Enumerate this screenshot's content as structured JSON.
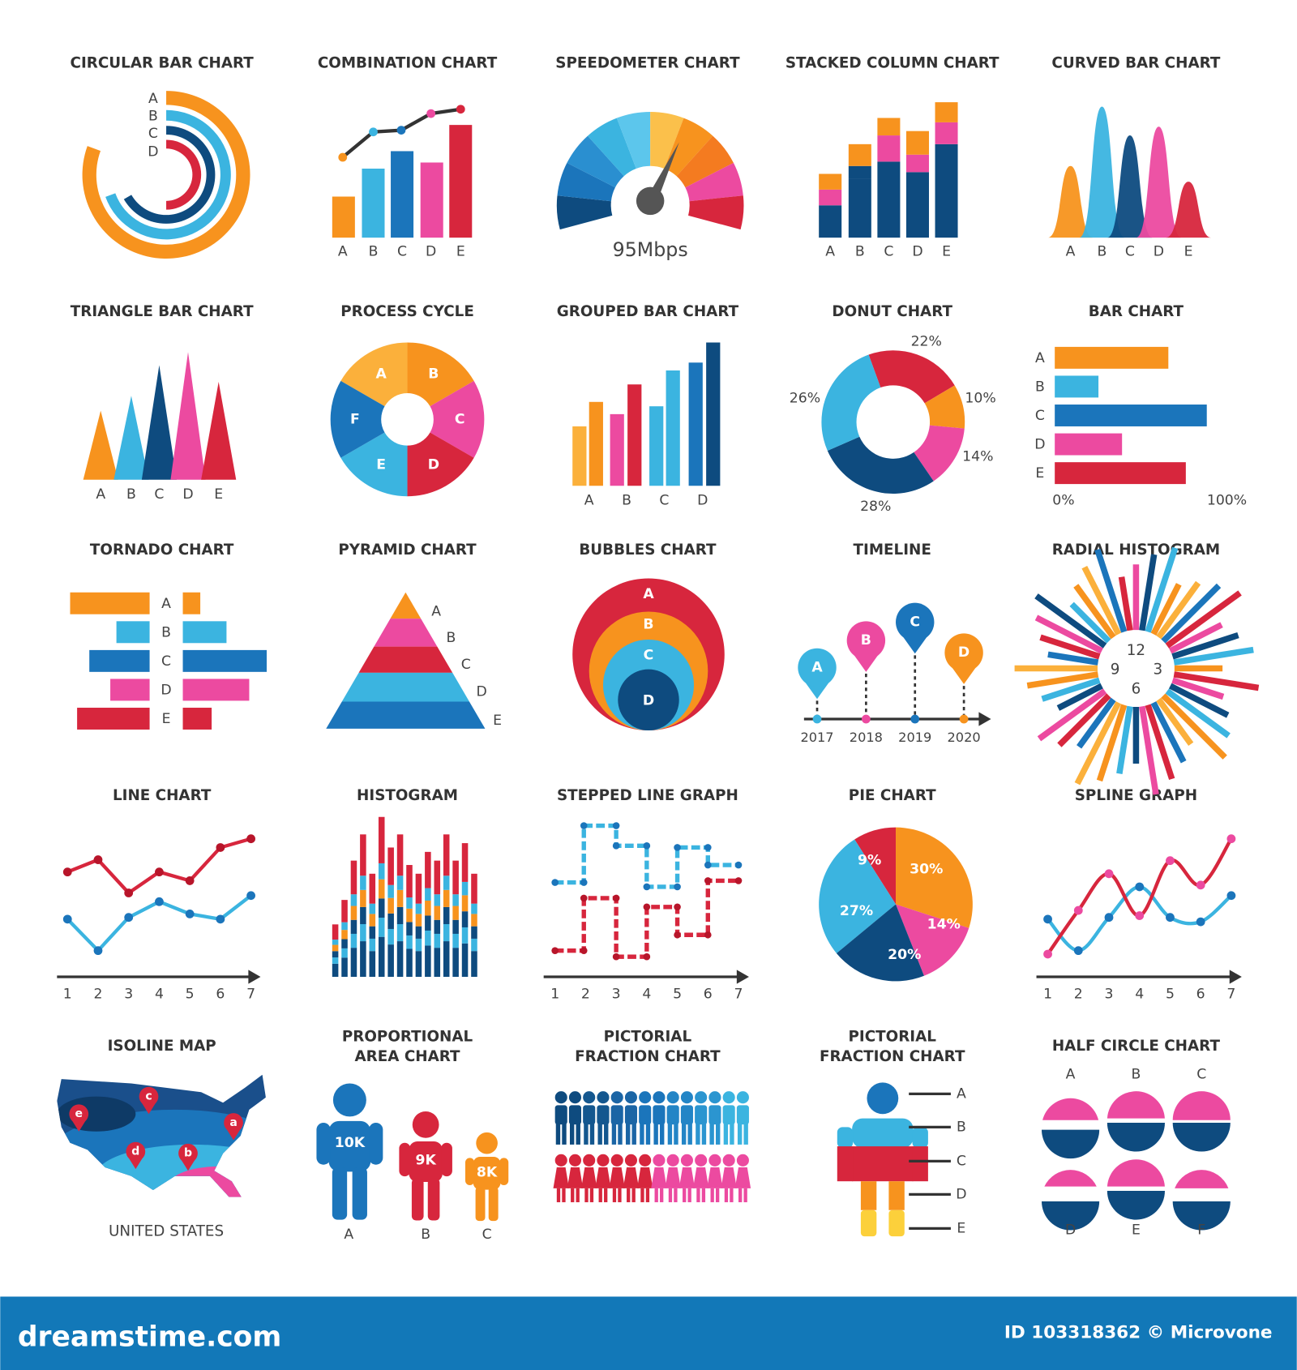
{
  "tiles": [
    {
      "title": "CIRCULAR BAR CHART",
      "labels": [
        "A",
        "B",
        "C",
        "D"
      ]
    },
    {
      "title": "COMBINATION CHART",
      "labels": [
        "A",
        "B",
        "C",
        "D",
        "E"
      ]
    },
    {
      "title": "SPEEDOMETER CHART",
      "labels": [
        "95Mbps"
      ]
    },
    {
      "title": "STACKED COLUMN CHART",
      "labels": [
        "A",
        "B",
        "C",
        "D",
        "E"
      ]
    },
    {
      "title": "CURVED BAR CHART",
      "labels": [
        "A",
        "B",
        "C",
        "D",
        "E"
      ]
    },
    {
      "title": "TRIANGLE BAR CHART",
      "labels": [
        "A",
        "B",
        "C",
        "D",
        "E"
      ]
    },
    {
      "title": "PROCESS CYCLE",
      "labels": [
        "A",
        "B",
        "C",
        "D",
        "E",
        "F"
      ]
    },
    {
      "title": "GROUPED BAR CHART",
      "labels": [
        "A",
        "B",
        "C",
        "D"
      ]
    },
    {
      "title": "DONUT CHART",
      "labels": [
        "22%",
        "10%",
        "14%",
        "28%",
        "26%"
      ]
    },
    {
      "title": "BAR CHART",
      "labels": [
        "A",
        "B",
        "C",
        "D",
        "E",
        "0%",
        "100%"
      ]
    },
    {
      "title": "TORNADO CHART",
      "labels": [
        "A",
        "B",
        "C",
        "D",
        "E"
      ]
    },
    {
      "title": "PYRAMID CHART",
      "labels": [
        "A",
        "B",
        "C",
        "D",
        "E"
      ]
    },
    {
      "title": "BUBBLES CHART",
      "labels": [
        "A",
        "B",
        "C",
        "D"
      ]
    },
    {
      "title": "TIMELINE",
      "labels": [
        "A",
        "B",
        "C",
        "D",
        "2017",
        "2018",
        "2019",
        "2020"
      ]
    },
    {
      "title": "RADIAL HISTOGRAM",
      "labels": [
        "12",
        "3",
        "6",
        "9"
      ]
    },
    {
      "title": "LINE CHART",
      "labels": [
        "1",
        "2",
        "3",
        "4",
        "5",
        "6",
        "7"
      ]
    },
    {
      "title": "HISTOGRAM"
    },
    {
      "title": "STEPPED LINE GRAPH",
      "labels": [
        "1",
        "2",
        "3",
        "4",
        "5",
        "6",
        "7"
      ]
    },
    {
      "title": "PIE CHART",
      "labels": [
        "9%",
        "30%",
        "27%",
        "14%",
        "20%"
      ]
    },
    {
      "title": "SPLINE GRAPH",
      "labels": [
        "1",
        "2",
        "3",
        "4",
        "5",
        "6",
        "7"
      ]
    },
    {
      "title": "ISOLINE MAP",
      "labels": [
        "c",
        "e",
        "a",
        "d",
        "b",
        "UNITED STATES"
      ]
    },
    {
      "title": [
        "PROPORTIONAL",
        "AREA CHART"
      ],
      "labels": [
        "10K",
        "9K",
        "8K",
        "A",
        "B",
        "C"
      ]
    },
    {
      "title": [
        "PICTORIAL",
        "FRACTION CHART"
      ]
    },
    {
      "title": [
        "PICTORIAL",
        "FRACTION CHART"
      ],
      "labels": [
        "A",
        "B",
        "C",
        "D",
        "E"
      ]
    },
    {
      "title": "HALF CIRCLE CHART",
      "labels": [
        "A",
        "B",
        "C",
        "D",
        "E",
        "F"
      ]
    }
  ],
  "footer": {
    "brand": "dreamstime.com",
    "id": "ID 103318362 © Microvone"
  }
}
